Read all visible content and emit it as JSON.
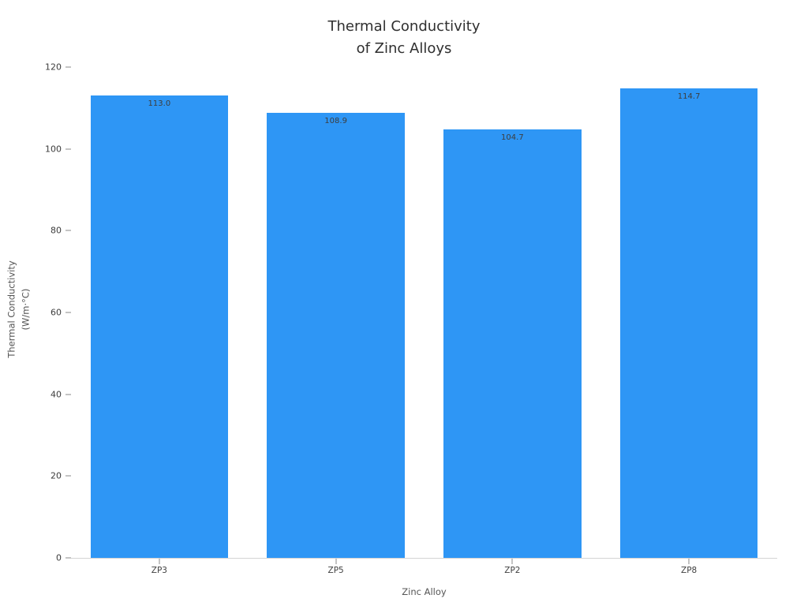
{
  "chart_data": {
    "type": "bar",
    "title": "Thermal Conductivity\nof Zinc Alloys",
    "xlabel": "Zinc Alloy",
    "ylabel": "Thermal Conductivity\n(W/m·°C)",
    "categories": [
      "ZP3",
      "ZP5",
      "ZP2",
      "ZP8"
    ],
    "values": [
      113.0,
      108.9,
      104.7,
      114.7
    ],
    "value_labels": [
      "113.0",
      "108.9",
      "104.7",
      "114.7"
    ],
    "ylim": [
      0,
      120
    ],
    "yticks": [
      0,
      20,
      40,
      60,
      80,
      100,
      120
    ],
    "grid": false,
    "legend": false,
    "bar_color": "#2E96F5",
    "background_color": "#ffffff",
    "value_label_color": "#3d3d3d",
    "tick_label_color": "#3b3b3b",
    "axis_label_color": "#555555",
    "title_color": "#2f2f2f"
  }
}
